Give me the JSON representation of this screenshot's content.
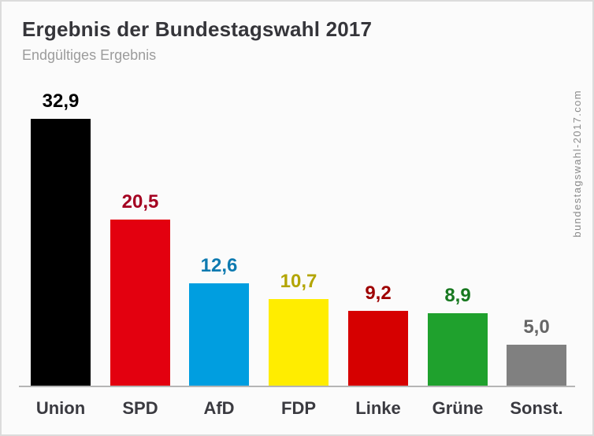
{
  "header": {
    "title": "Ergebnis der Bundestagswahl 2017",
    "subtitle": "Endgültiges Ergebnis"
  },
  "watermark": "bundestagswahl-2017.com",
  "chart_data": {
    "type": "bar",
    "title": "Ergebnis der Bundestagswahl 2017",
    "subtitle": "Endgültiges Ergebnis",
    "unit": "percent",
    "categories": [
      "Union",
      "SPD",
      "AfD",
      "FDP",
      "Linke",
      "Grüne",
      "Sonst."
    ],
    "values": [
      32.9,
      20.5,
      12.6,
      10.7,
      9.2,
      8.9,
      5.0
    ],
    "value_labels": [
      "32,9",
      "20,5",
      "12,6",
      "10,7",
      "9,2",
      "8,9",
      "5,0"
    ],
    "bar_colors": [
      "#000000",
      "#e3000f",
      "#009ee0",
      "#ffed00",
      "#d60000",
      "#1fa12d",
      "#808080"
    ],
    "value_label_colors": [
      "#000000",
      "#a40021",
      "#0d7ab0",
      "#b3a502",
      "#9e0000",
      "#17781f",
      "#666666"
    ],
    "xlabel": "",
    "ylabel": "",
    "ylim": [
      0,
      34
    ],
    "grid": false,
    "legend": false,
    "baseline_color": "#b5b5b5",
    "background_color": "#fbfbfb",
    "category_label_color": "#3a3a40"
  }
}
